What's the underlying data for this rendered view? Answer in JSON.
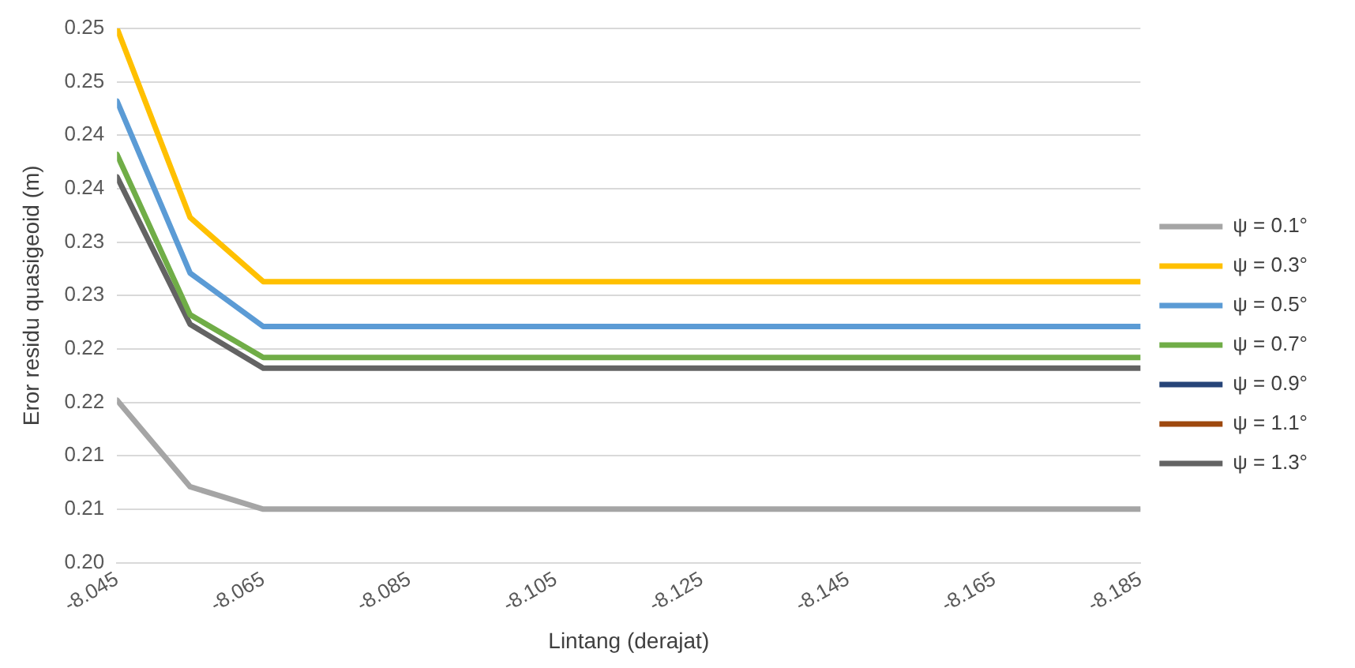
{
  "chart_data": {
    "type": "line",
    "xlabel": "Lintang (derajat)",
    "ylabel": "Eror residu quasigeoid (m)",
    "x": [
      -8.045,
      -8.055,
      -8.065,
      -8.185
    ],
    "xlim": [
      -8.045,
      -8.185
    ],
    "xticks": [
      -8.045,
      -8.065,
      -8.085,
      -8.105,
      -8.125,
      -8.145,
      -8.165,
      -8.185
    ],
    "ylim": [
      0.2,
      0.25
    ],
    "yticks": [
      {
        "value": 0.2,
        "label": "0.20"
      },
      {
        "value": 0.205,
        "label": "0.21"
      },
      {
        "value": 0.21,
        "label": "0.21"
      },
      {
        "value": 0.215,
        "label": "0.22"
      },
      {
        "value": 0.22,
        "label": "0.22"
      },
      {
        "value": 0.225,
        "label": "0.23"
      },
      {
        "value": 0.23,
        "label": "0.23"
      },
      {
        "value": 0.235,
        "label": "0.24"
      },
      {
        "value": 0.24,
        "label": "0.24"
      },
      {
        "value": 0.245,
        "label": "0.25"
      },
      {
        "value": 0.25,
        "label": "0.25"
      }
    ],
    "grid": "y",
    "legend": "right",
    "marker": "none",
    "line_style": "solid",
    "series": [
      {
        "name": "ψ = 0.1°",
        "color": "#a5a5a5",
        "values": [
          0.2152,
          0.2071,
          0.205,
          0.205
        ]
      },
      {
        "name": "ψ = 0.3°",
        "color": "#ffc000",
        "values": [
          0.25,
          0.2323,
          0.2263,
          0.2263
        ]
      },
      {
        "name": "ψ = 0.5°",
        "color": "#5b9bd5",
        "values": [
          0.2432,
          0.2271,
          0.2221,
          0.2221
        ]
      },
      {
        "name": "ψ = 0.7°",
        "color": "#70ad47",
        "values": [
          0.2382,
          0.2232,
          0.2192,
          0.2192
        ]
      },
      {
        "name": "ψ = 0.9°",
        "color": "#264478",
        "values": [
          null,
          null,
          null,
          null
        ]
      },
      {
        "name": "ψ = 1.1°",
        "color": "#9e480e",
        "values": [
          null,
          null,
          null,
          null
        ]
      },
      {
        "name": "ψ = 1.3°",
        "color": "#636363",
        "values": [
          0.2361,
          0.2223,
          0.2182,
          0.2182
        ]
      }
    ]
  }
}
